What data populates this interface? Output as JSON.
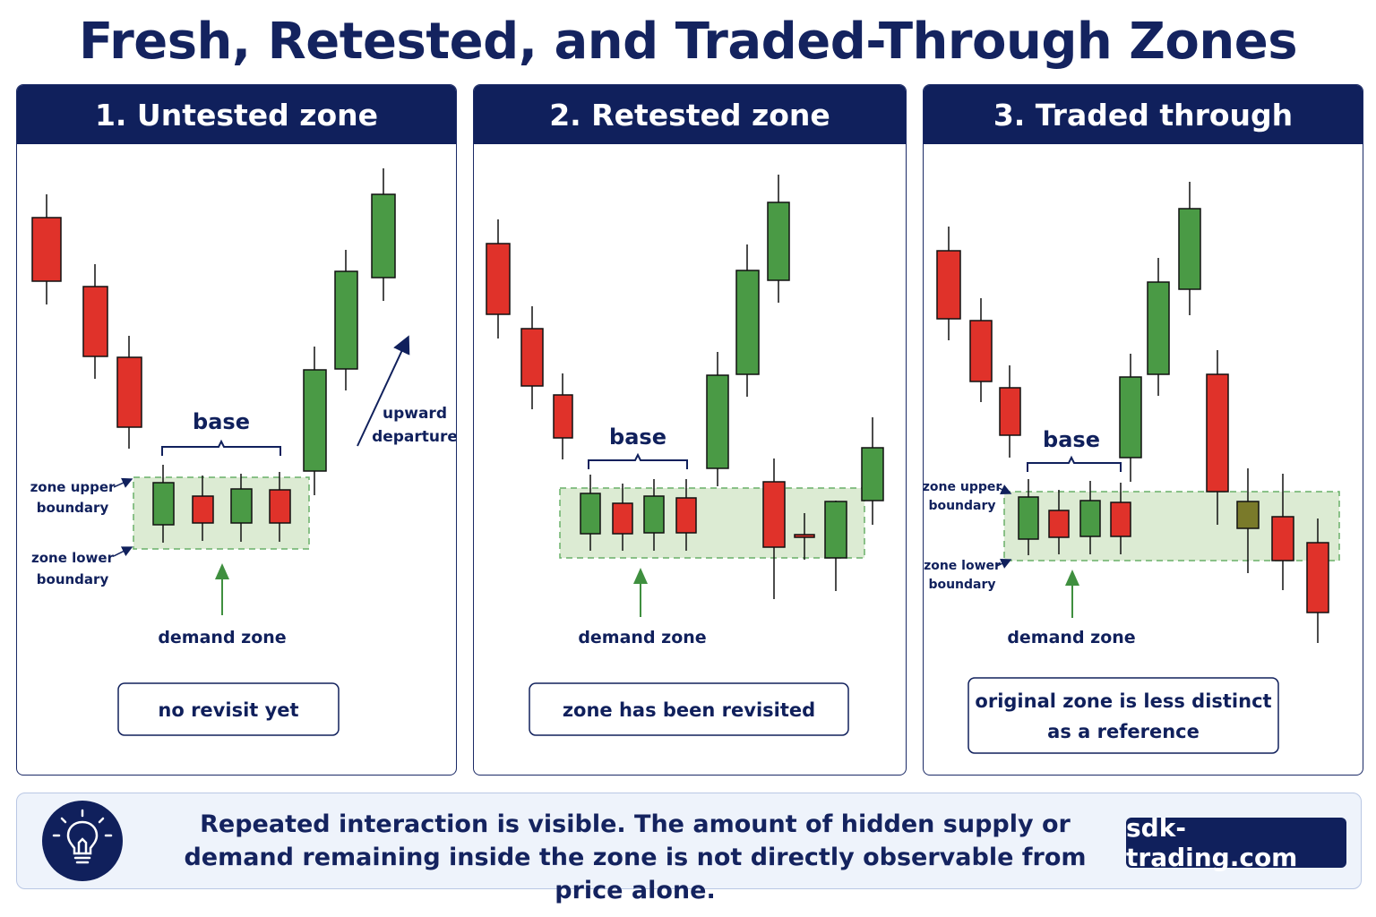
{
  "title": "Fresh, Retested, and Traded-Through Zones",
  "colors": {
    "navy": "#10205c",
    "bullish": "#4a9a45",
    "bearish": "#e0322a",
    "zone_fill": "#dcebd3",
    "zone_border": "#69b069",
    "arrow_green": "#3f8f3f"
  },
  "panels": [
    {
      "title": "1. Untested zone",
      "base_label": "base",
      "zone_upper_label": "zone upper boundary",
      "zone_lower_label": "zone lower boundary",
      "demand_label": "demand zone",
      "departure_label": "upward departure",
      "caption": "no revisit yet"
    },
    {
      "title": "2. Retested zone",
      "base_label": "base",
      "demand_label": "demand zone",
      "caption": "zone has been revisited"
    },
    {
      "title": "3. Traded through",
      "base_label": "base",
      "zone_upper_label": "zone upper boundary",
      "zone_lower_label": "zone lower boundary",
      "demand_label": "demand zone",
      "caption": "original zone is less distinct as a reference"
    }
  ],
  "footer": {
    "icon": "lightbulb-icon",
    "text": "Repeated interaction is visible. The amount of hidden supply or demand remaining inside the zone is not directly observable from price alone.",
    "brand": "sdk-trading.com"
  }
}
